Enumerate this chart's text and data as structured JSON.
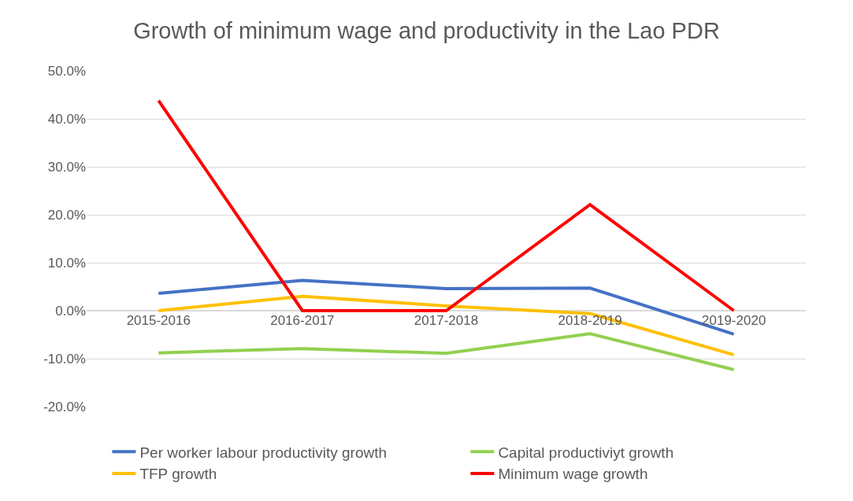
{
  "chart_data": {
    "type": "line",
    "title": "Growth of minimum wage and productivity in the Lao PDR",
    "categories": [
      "2015-2016",
      "2016-2017",
      "2017-2018",
      "2018-2019",
      "2019-2020"
    ],
    "series": [
      {
        "name": "Per worker labour productivity growth",
        "color": "#4472c4",
        "values": [
          3.6,
          6.3,
          4.6,
          4.7,
          -4.9
        ]
      },
      {
        "name": "Capital productiviyt growth",
        "color": "#92d050",
        "values": [
          -8.8,
          -7.9,
          -8.9,
          -4.8,
          -12.3
        ]
      },
      {
        "name": "TFP growth",
        "color": "#ffc000",
        "values": [
          0.0,
          3.0,
          1.0,
          -0.6,
          -9.2
        ]
      },
      {
        "name": "Minimum wage growth",
        "color": "#ff0000",
        "values": [
          43.8,
          0.0,
          0.0,
          22.1,
          0.0
        ]
      }
    ],
    "ylim": [
      -20,
      50
    ],
    "yticks": [
      {
        "value": -20,
        "label": "-20.0%"
      },
      {
        "value": -10,
        "label": "-10.0%"
      },
      {
        "value": 0,
        "label": "0.0%"
      },
      {
        "value": 10,
        "label": "10.0%"
      },
      {
        "value": 20,
        "label": "20.0%"
      },
      {
        "value": 30,
        "label": "30.0%"
      },
      {
        "value": 40,
        "label": "40.0%"
      },
      {
        "value": 50,
        "label": "50.0%"
      }
    ],
    "grid": "y",
    "legend": "bottom",
    "marker": "none",
    "line_style": "solid"
  }
}
